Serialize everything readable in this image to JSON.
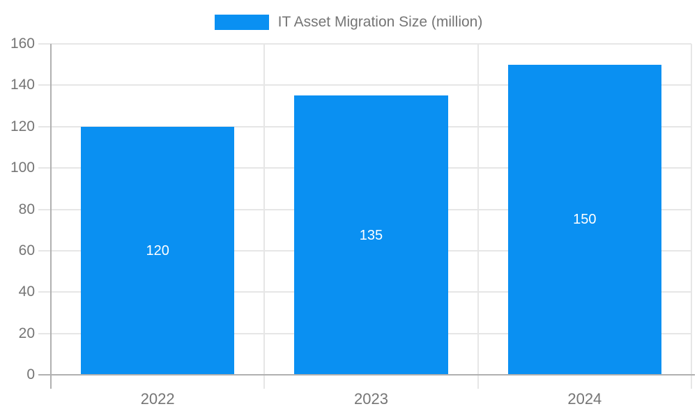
{
  "legend": {
    "label": "IT Asset Migration Size (million)"
  },
  "chart_data": {
    "type": "bar",
    "title": "IT Asset Migration Size (million)",
    "categories": [
      "2022",
      "2023",
      "2024"
    ],
    "series": [
      {
        "name": "IT Asset Migration Size (million)",
        "values": [
          120,
          135,
          150
        ]
      }
    ],
    "bar_labels": [
      "120",
      "135",
      "150"
    ],
    "xlabel": "",
    "ylabel": "",
    "ylim": [
      0,
      160
    ],
    "yticks": [
      0,
      20,
      40,
      60,
      80,
      100,
      120,
      140,
      160
    ],
    "grid": true,
    "legend_position": "top-center",
    "value_labels_position": "inside-middle",
    "colors": {
      "bar": "#0a90f2",
      "label_text": "#757575",
      "gridline": "#e6e6e6",
      "axis_line": "#b0b0b0",
      "value_label": "#ffffff",
      "background": "#ffffff"
    }
  }
}
